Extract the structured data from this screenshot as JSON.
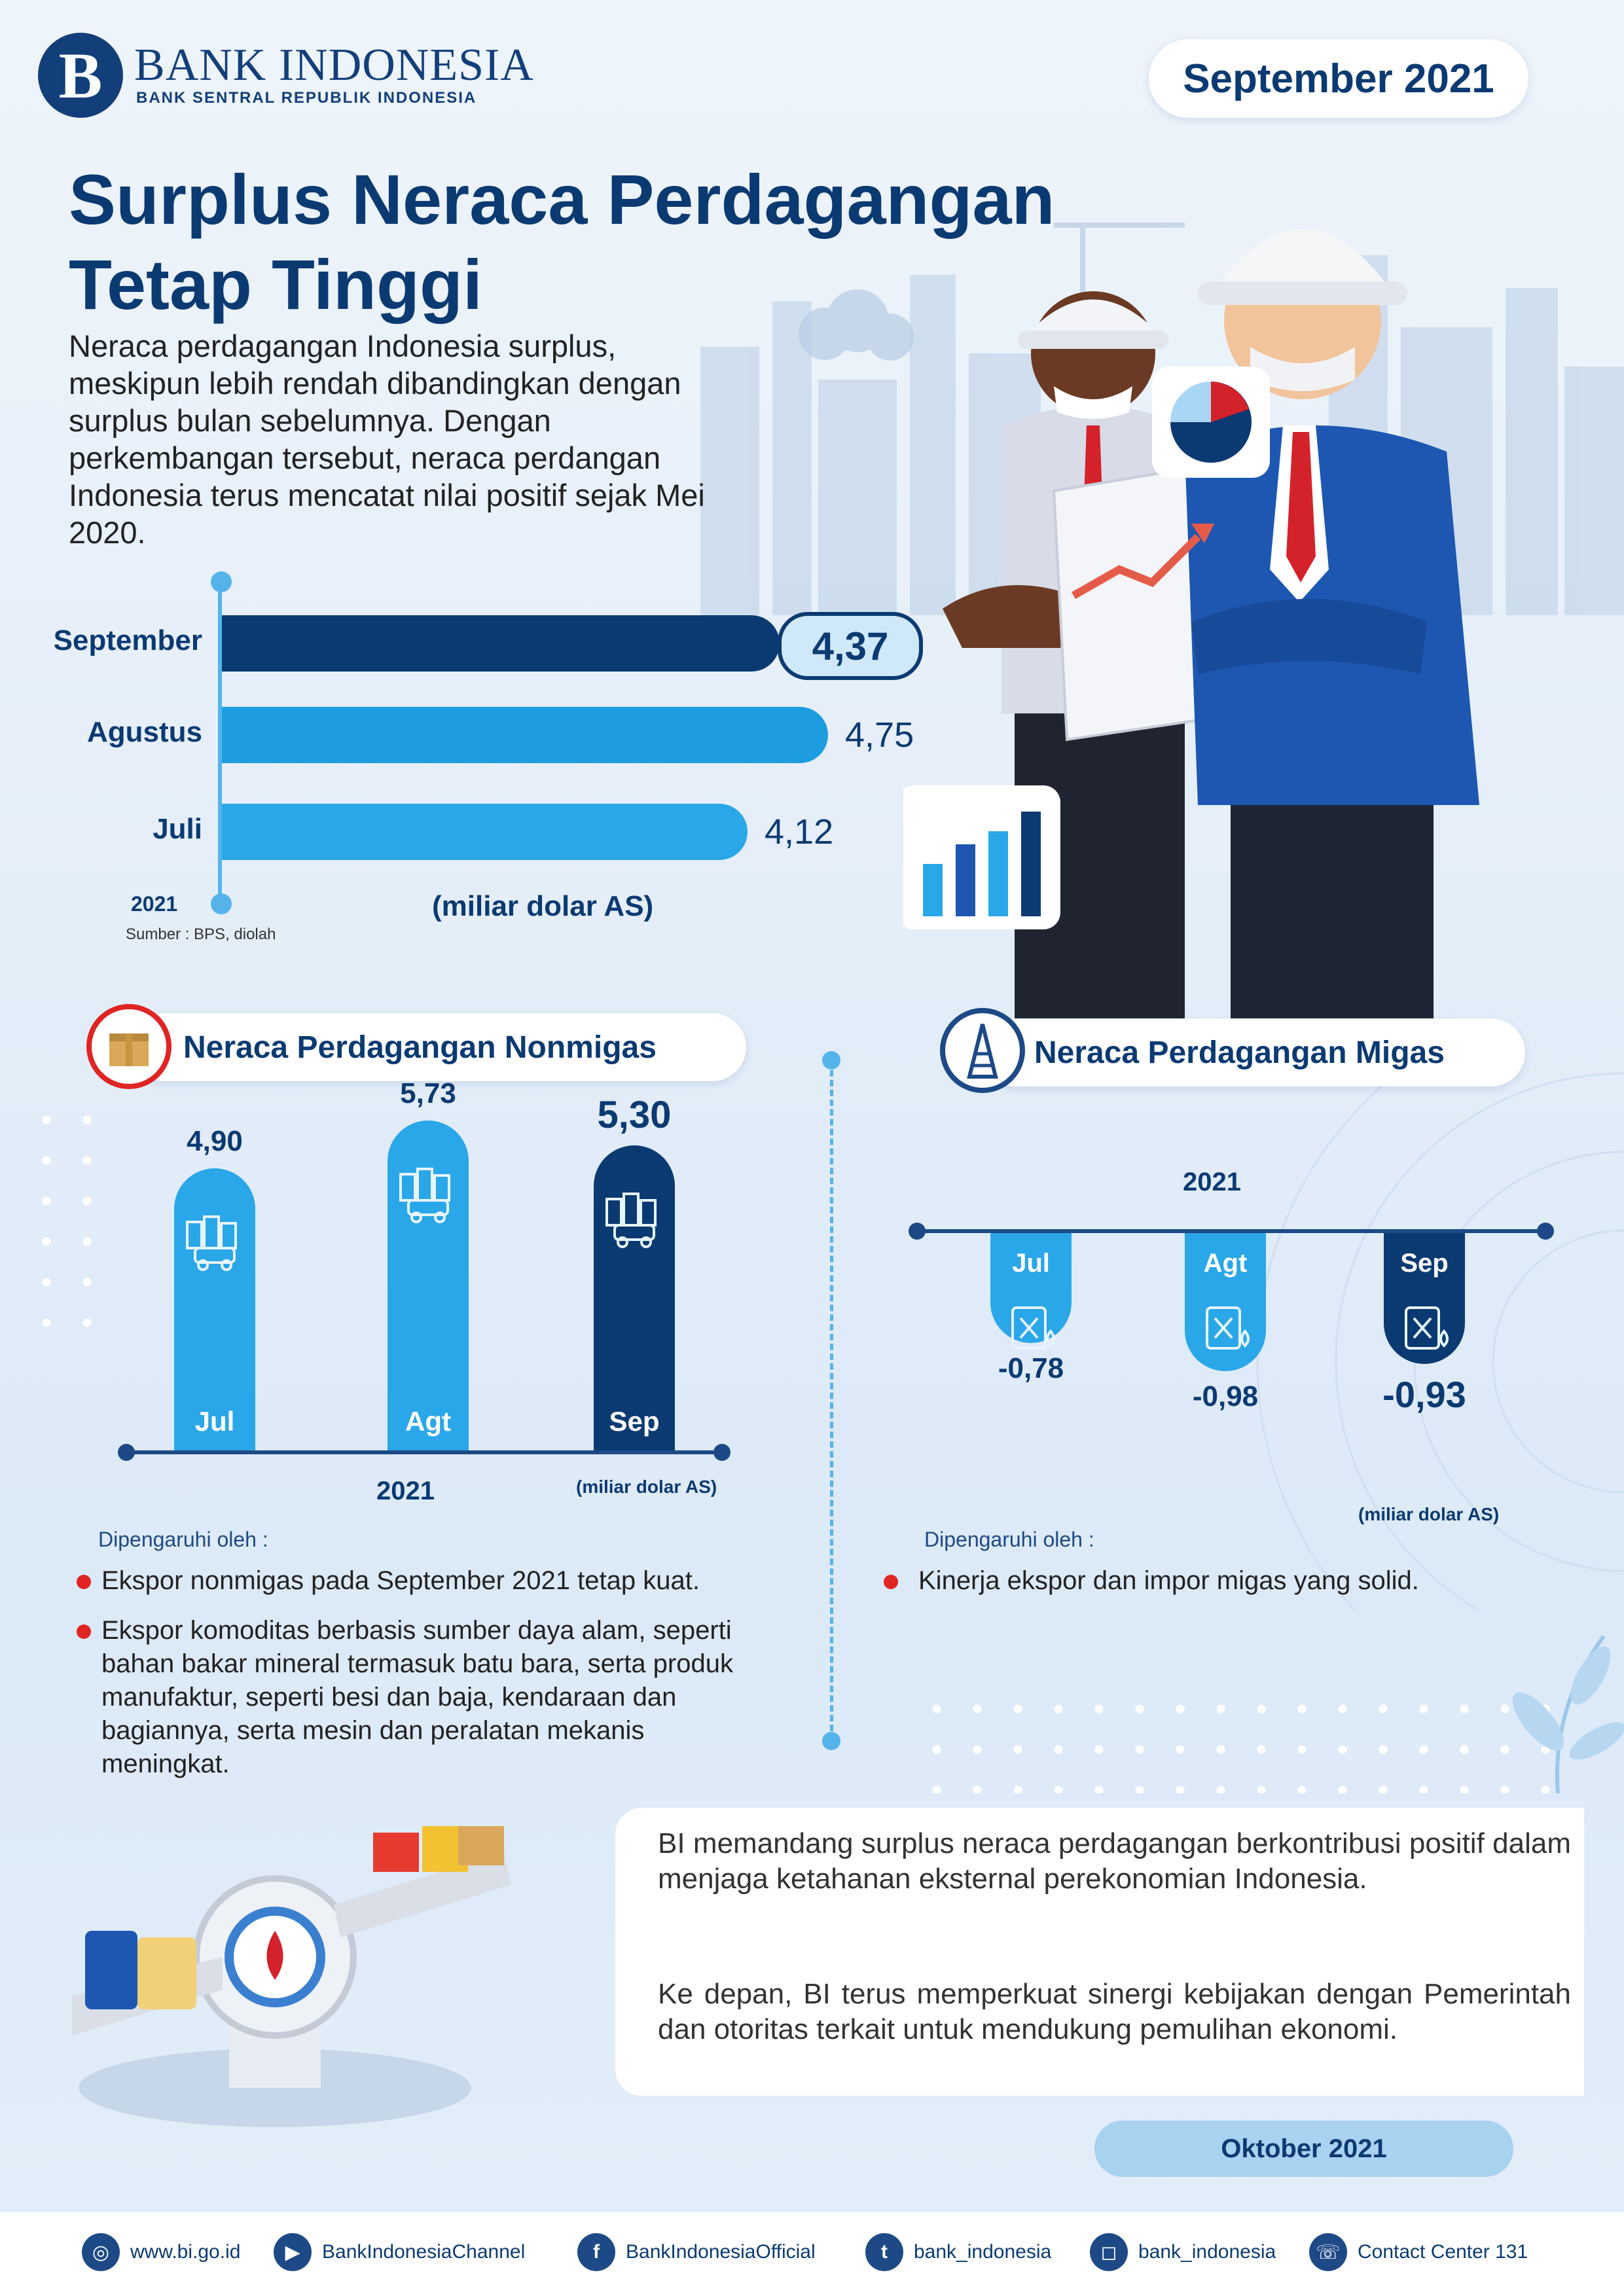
{
  "header": {
    "logo_name": "BANK INDONESIA",
    "logo_subtitle": "BANK SENTRAL REPUBLIK INDONESIA",
    "period": "September 2021"
  },
  "title_line1": "Surplus Neraca Perdagangan",
  "title_line2": "Tetap Tinggi",
  "intro": "Neraca perdagangan Indonesia surplus, meskipun lebih rendah dibandingkan dengan surplus bulan sebelumnya. Dengan perkembangan tersebut, neraca perdangan Indonesia terus mencatat nilai positif sejak Mei 2020.",
  "trade_balance": {
    "year": "2021",
    "source": "Sumber : BPS, diolah",
    "unit": "(miliar dolar AS)",
    "labels": [
      "4,37",
      "4,75",
      "4,12"
    ]
  },
  "nonmigas": {
    "title": "Neraca Perdagangan Nonmigas",
    "year": "2021",
    "unit": "(miliar dolar AS)",
    "labels": [
      "4,90",
      "5,73",
      "5,30"
    ],
    "factors_head": "Dipengaruhi oleh :",
    "factors": [
      "Ekspor nonmigas pada September 2021 tetap kuat.",
      "Ekspor komoditas berbasis sumber daya alam, seperti bahan bakar mineral termasuk batu bara, serta produk manufaktur, seperti besi dan baja, kendaraan dan bagiannya, serta mesin dan peralatan mekanis meningkat."
    ]
  },
  "migas": {
    "title": "Neraca Perdagangan Migas",
    "year": "2021",
    "unit": "(miliar dolar AS)",
    "labels": [
      "-0,78",
      "-0,98",
      "-0,93"
    ],
    "factors_head": "Dipengaruhi oleh :",
    "factors": [
      "Kinerja ekspor dan impor migas yang solid."
    ]
  },
  "note": {
    "p1": "BI memandang surplus neraca perdagangan berkontribusi positif dalam menjaga ketahanan eksternal perekonomian Indonesia.",
    "p2": "Ke depan, BI terus memperkuat sinergi kebijakan dengan Pemerintah dan otoritas terkait untuk mendukung pemulihan ekonomi."
  },
  "release_date": "Oktober 2021",
  "footer": {
    "website": "www.bi.go.id",
    "youtube": "BankIndonesiaChannel",
    "facebook": "BankIndonesiaOfficial",
    "twitter": "bank_indonesia",
    "instagram": "bank_indonesia",
    "contact": "Contact Center 131"
  },
  "chart_data": [
    {
      "type": "bar",
      "orientation": "horizontal",
      "categories": [
        "September",
        "Agustus",
        "Juli"
      ],
      "values": [
        4.37,
        4.75,
        4.12
      ],
      "xlabel": "(miliar dolar AS)",
      "colors": [
        "#0b3a72",
        "#1e9ce0",
        "#2aa7e8"
      ]
    },
    {
      "type": "bar",
      "categories": [
        "Jul",
        "Agt",
        "Sep"
      ],
      "values": [
        4.9,
        5.73,
        5.3
      ],
      "xlabel": "2021",
      "ylabel": "(miliar dolar AS)",
      "colors": [
        "#2aa7e8",
        "#2aa7e8",
        "#0b3a72"
      ]
    },
    {
      "type": "bar",
      "categories": [
        "Jul",
        "Agt",
        "Sep"
      ],
      "values": [
        -0.78,
        -0.98,
        -0.93
      ],
      "xlabel": "2021",
      "ylabel": "(miliar dolar AS)",
      "colors": [
        "#2aa7e8",
        "#2aa7e8",
        "#0b3a72"
      ]
    }
  ],
  "colors": {
    "navy": "#0b3a72",
    "sky": "#2aa7e8",
    "accent_red": "#e02424"
  }
}
